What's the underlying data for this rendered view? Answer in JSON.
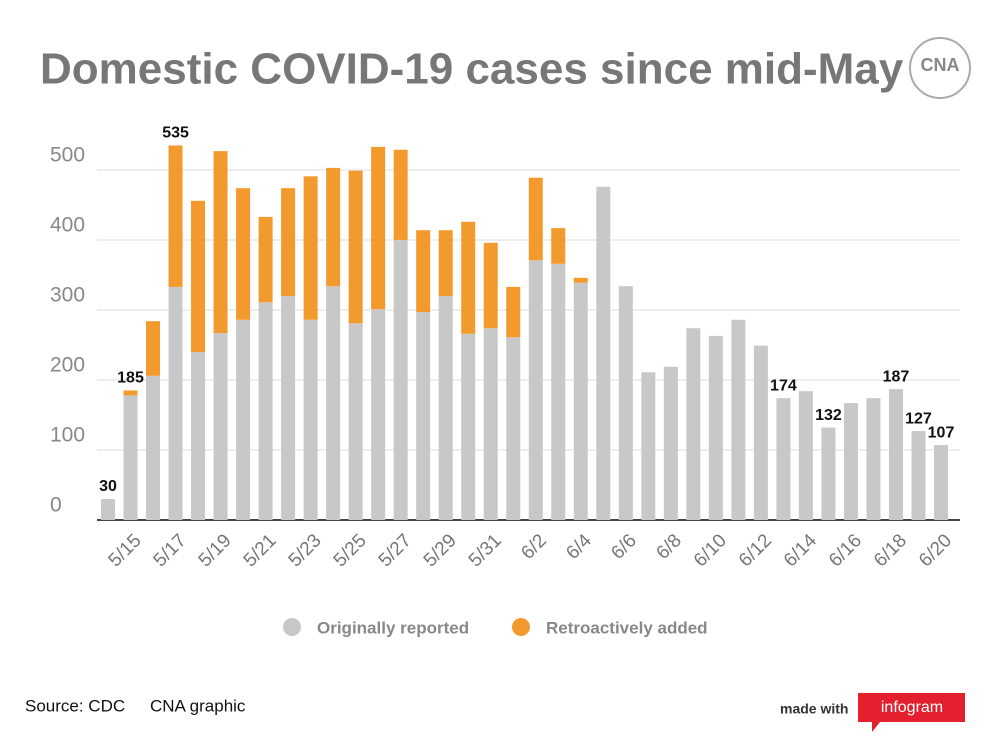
{
  "chart_data": {
    "type": "stacked_bar",
    "title": "Domestic COVID-19 cases since mid-May",
    "logo": "CNA",
    "source": "Source: CDC",
    "credit": "CNA graphic",
    "made_with": "made with",
    "brand": "infogram",
    "categories": [
      null,
      "5/15",
      null,
      "5/17",
      null,
      "5/19",
      null,
      "5/21",
      null,
      "5/23",
      null,
      "5/25",
      null,
      "5/27",
      null,
      "5/29",
      null,
      "5/31",
      null,
      "6/2",
      null,
      "6/4",
      null,
      "6/6",
      null,
      "6/8",
      null,
      "6/10",
      null,
      "6/12",
      null,
      "6/14",
      null,
      "6/16",
      null,
      "6/18",
      null,
      "6/20"
    ],
    "series": [
      {
        "name": "Originally reported",
        "color": "#c8c8c8",
        "values": [
          30,
          178,
          206,
          333,
          240,
          267,
          286,
          311,
          320,
          286,
          334,
          281,
          301,
          400,
          297,
          320,
          266,
          274,
          261,
          371,
          366,
          339,
          476,
          334,
          211,
          219,
          274,
          263,
          286,
          249,
          174,
          184,
          132,
          167,
          174,
          187,
          127,
          107
        ]
      },
      {
        "name": "Retroactively added",
        "color": "#f39a2e",
        "values": [
          0,
          7,
          78,
          202,
          216,
          260,
          188,
          122,
          154,
          205,
          169,
          218,
          232,
          129,
          117,
          94,
          160,
          122,
          72,
          118,
          51,
          7,
          0,
          0,
          0,
          0,
          0,
          0,
          0,
          0,
          0,
          0,
          0,
          0,
          0,
          0,
          0,
          0
        ]
      }
    ],
    "value_labels": [
      "30",
      "185",
      null,
      "535",
      null,
      null,
      null,
      null,
      null,
      null,
      null,
      null,
      null,
      null,
      null,
      null,
      null,
      null,
      null,
      null,
      null,
      null,
      null,
      null,
      null,
      null,
      null,
      null,
      null,
      null,
      "174",
      null,
      "132",
      null,
      null,
      "187",
      "127",
      "107"
    ],
    "ylim": [
      0,
      550
    ],
    "yticks": [
      0,
      100,
      200,
      300,
      400,
      500
    ],
    "grid": true
  }
}
